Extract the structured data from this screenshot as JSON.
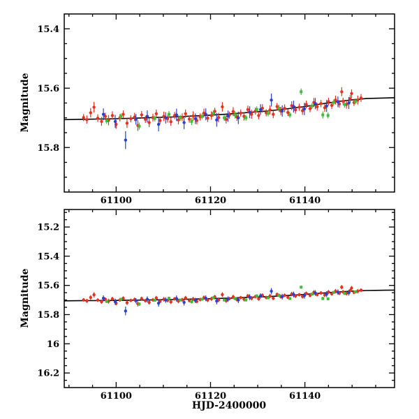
{
  "figure": {
    "background": "#ffffff",
    "frame_color": "#000000"
  },
  "chart_data": {
    "type": "scatter",
    "title": "",
    "xlabel": "HJD-2400000",
    "ylabel": "Magnitude",
    "grid": false,
    "legend": "none",
    "panels": [
      {
        "name": "top",
        "xlim": [
          61089,
          61159
        ],
        "ylim": [
          15.35,
          15.95
        ],
        "y_axis_is_magnitude_inverted": true,
        "xticks": [
          61100,
          61120,
          61140
        ],
        "xtick_labels": [
          "61100",
          "61120",
          "61140"
        ],
        "yticks": [
          15.4,
          15.6,
          15.8
        ],
        "ytick_labels": [
          "15.4",
          "15.6",
          "15.8"
        ],
        "x_minor_step": 5,
        "y_minor_step": 0.05,
        "show_xlabel": false
      },
      {
        "name": "bottom",
        "xlim": [
          61089,
          61159
        ],
        "ylim": [
          15.08,
          16.3
        ],
        "y_axis_is_magnitude_inverted": true,
        "xticks": [
          61100,
          61120,
          61140
        ],
        "xtick_labels": [
          "61100",
          "61120",
          "61140"
        ],
        "yticks": [
          15.2,
          15.4,
          15.6,
          15.8,
          16.0,
          16.2
        ],
        "ytick_labels": [
          "15.2",
          "15.4",
          "15.6",
          "15.8",
          "16",
          "16.2"
        ],
        "x_minor_step": 5,
        "y_minor_step": 0.05,
        "show_xlabel": true
      }
    ],
    "series": [
      {
        "name": "photometry-red",
        "marker": "circle",
        "color": "#e8301e",
        "points": [
          [
            61093.1,
            15.699,
            0.012
          ],
          [
            61093.8,
            15.706,
            0.014
          ],
          [
            61094.6,
            15.683,
            0.016
          ],
          [
            61095.3,
            15.664,
            0.018
          ],
          [
            61096.1,
            15.701,
            0.013
          ],
          [
            61096.9,
            15.712,
            0.015
          ],
          [
            61097.7,
            15.695,
            0.012
          ],
          [
            61098.4,
            15.708,
            0.017
          ],
          [
            61099.2,
            15.692,
            0.014
          ],
          [
            61100.0,
            15.722,
            0.015
          ],
          [
            61100.8,
            15.7,
            0.012
          ],
          [
            61101.5,
            15.688,
            0.013
          ],
          [
            61102.3,
            15.718,
            0.016
          ],
          [
            61103.1,
            15.703,
            0.012
          ],
          [
            61103.9,
            15.697,
            0.014
          ],
          [
            61104.6,
            15.726,
            0.018
          ],
          [
            61105.4,
            15.69,
            0.013
          ],
          [
            61106.2,
            15.705,
            0.012
          ],
          [
            61107.0,
            15.716,
            0.015
          ],
          [
            61107.8,
            15.699,
            0.013
          ],
          [
            61108.5,
            15.686,
            0.014
          ],
          [
            61109.3,
            15.709,
            0.012
          ],
          [
            61110.1,
            15.695,
            0.016
          ],
          [
            61110.9,
            15.703,
            0.013
          ],
          [
            61111.6,
            15.713,
            0.014
          ],
          [
            61112.4,
            15.692,
            0.012
          ],
          [
            61113.2,
            15.707,
            0.015
          ],
          [
            61114.0,
            15.698,
            0.013
          ],
          [
            61114.7,
            15.686,
            0.014
          ],
          [
            61115.5,
            15.704,
            0.012
          ],
          [
            61116.3,
            15.694,
            0.016
          ],
          [
            61117.1,
            15.709,
            0.013
          ],
          [
            61117.8,
            15.697,
            0.012
          ],
          [
            61118.6,
            15.684,
            0.015
          ],
          [
            61119.4,
            15.701,
            0.013
          ],
          [
            61120.2,
            15.692,
            0.014
          ],
          [
            61120.9,
            15.678,
            0.012
          ],
          [
            61121.7,
            15.699,
            0.016
          ],
          [
            61122.5,
            15.663,
            0.016
          ],
          [
            61123.3,
            15.705,
            0.014
          ],
          [
            61124.0,
            15.691,
            0.012
          ],
          [
            61124.8,
            15.679,
            0.015
          ],
          [
            61125.6,
            15.697,
            0.013
          ],
          [
            61126.4,
            15.684,
            0.012
          ],
          [
            61127.1,
            15.695,
            0.014
          ],
          [
            61127.9,
            15.672,
            0.013
          ],
          [
            61128.7,
            15.688,
            0.015
          ],
          [
            61129.5,
            15.677,
            0.012
          ],
          [
            61130.2,
            15.692,
            0.013
          ],
          [
            61131.0,
            15.668,
            0.014
          ],
          [
            61131.8,
            15.683,
            0.012
          ],
          [
            61132.6,
            15.673,
            0.015
          ],
          [
            61133.3,
            15.688,
            0.013
          ],
          [
            61134.1,
            15.662,
            0.012
          ],
          [
            61134.9,
            15.677,
            0.014
          ],
          [
            61135.7,
            15.668,
            0.013
          ],
          [
            61136.4,
            15.682,
            0.012
          ],
          [
            61137.2,
            15.659,
            0.015
          ],
          [
            61138.0,
            15.673,
            0.013
          ],
          [
            61138.8,
            15.664,
            0.012
          ],
          [
            61139.5,
            15.676,
            0.014
          ],
          [
            61140.3,
            15.655,
            0.013
          ],
          [
            61141.1,
            15.669,
            0.012
          ],
          [
            61141.9,
            15.648,
            0.015
          ],
          [
            61142.6,
            15.663,
            0.013
          ],
          [
            61143.4,
            15.652,
            0.012
          ],
          [
            61144.2,
            15.666,
            0.014
          ],
          [
            61145.0,
            15.645,
            0.013
          ],
          [
            61145.7,
            15.658,
            0.012
          ],
          [
            61146.5,
            15.64,
            0.015
          ],
          [
            61147.3,
            15.653,
            0.013
          ],
          [
            61147.8,
            15.612,
            0.015
          ],
          [
            61148.1,
            15.644,
            0.012
          ],
          [
            61148.8,
            15.655,
            0.014
          ],
          [
            61149.6,
            15.636,
            0.013
          ],
          [
            61149.9,
            15.618,
            0.014
          ],
          [
            61150.4,
            15.648,
            0.012
          ],
          [
            61151.2,
            15.64,
            0.015
          ],
          [
            61151.9,
            15.633,
            0.013
          ]
        ]
      },
      {
        "name": "photometry-blue",
        "marker": "circle",
        "color": "#2743cf",
        "points": [
          [
            61097.3,
            15.688,
            0.02
          ],
          [
            61099.8,
            15.712,
            0.022
          ],
          [
            61102.0,
            15.775,
            0.03
          ],
          [
            61104.2,
            15.705,
            0.018
          ],
          [
            61106.6,
            15.695,
            0.02
          ],
          [
            61109.0,
            15.722,
            0.024
          ],
          [
            61110.5,
            15.7,
            0.019
          ],
          [
            61112.8,
            15.69,
            0.021
          ],
          [
            61114.4,
            15.716,
            0.022
          ],
          [
            61116.8,
            15.703,
            0.018
          ],
          [
            61119.0,
            15.688,
            0.02
          ],
          [
            61121.3,
            15.707,
            0.023
          ],
          [
            61123.7,
            15.694,
            0.019
          ],
          [
            61125.9,
            15.7,
            0.021
          ],
          [
            61128.3,
            15.681,
            0.02
          ],
          [
            61130.6,
            15.672,
            0.018
          ],
          [
            61132.9,
            15.64,
            0.022
          ],
          [
            61135.2,
            15.677,
            0.019
          ],
          [
            61137.6,
            15.662,
            0.02
          ],
          [
            61139.9,
            15.67,
            0.021
          ],
          [
            61142.2,
            15.652,
            0.019
          ],
          [
            61144.6,
            15.66,
            0.02
          ],
          [
            61147.0,
            15.646,
            0.018
          ],
          [
            61149.3,
            15.65,
            0.02
          ]
        ]
      },
      {
        "name": "photometry-green",
        "marker": "square",
        "color": "#3fbe3a",
        "points": [
          [
            61098.0,
            15.71,
            0.01
          ],
          [
            61101.0,
            15.695,
            0.01
          ],
          [
            61104.9,
            15.728,
            0.012
          ],
          [
            61108.2,
            15.702,
            0.01
          ],
          [
            61111.2,
            15.688,
            0.011
          ],
          [
            61113.6,
            15.7,
            0.01
          ],
          [
            61116.0,
            15.712,
            0.012
          ],
          [
            61118.2,
            15.695,
            0.01
          ],
          [
            61120.6,
            15.685,
            0.011
          ],
          [
            61122.9,
            15.7,
            0.01
          ],
          [
            61125.2,
            15.69,
            0.012
          ],
          [
            61127.5,
            15.7,
            0.01
          ],
          [
            61129.8,
            15.672,
            0.011
          ],
          [
            61132.2,
            15.685,
            0.01
          ],
          [
            61134.5,
            15.668,
            0.012
          ],
          [
            61136.8,
            15.69,
            0.01
          ],
          [
            61139.2,
            15.612,
            0.011
          ],
          [
            61141.5,
            15.66,
            0.01
          ],
          [
            61143.8,
            15.69,
            0.012
          ],
          [
            61144.9,
            15.692,
            0.01
          ],
          [
            61146.1,
            15.648,
            0.01
          ],
          [
            61148.4,
            15.655,
            0.011
          ],
          [
            61150.7,
            15.645,
            0.01
          ]
        ]
      }
    ],
    "model": {
      "name": "model-light-curve",
      "color": "#000000",
      "points": [
        [
          61089,
          15.706
        ],
        [
          61092,
          15.705
        ],
        [
          61096,
          15.704
        ],
        [
          61100,
          15.703
        ],
        [
          61104,
          15.701
        ],
        [
          61108,
          15.699
        ],
        [
          61112,
          15.697
        ],
        [
          61116,
          15.694
        ],
        [
          61120,
          15.691
        ],
        [
          61124,
          15.687
        ],
        [
          61128,
          15.682
        ],
        [
          61132,
          15.677
        ],
        [
          61136,
          15.67
        ],
        [
          61140,
          15.662
        ],
        [
          61144,
          15.652
        ],
        [
          61148,
          15.643
        ],
        [
          61151,
          15.638
        ],
        [
          61153,
          15.635
        ],
        [
          61155,
          15.634
        ],
        [
          61157,
          15.633
        ],
        [
          61159,
          15.632
        ]
      ]
    }
  }
}
